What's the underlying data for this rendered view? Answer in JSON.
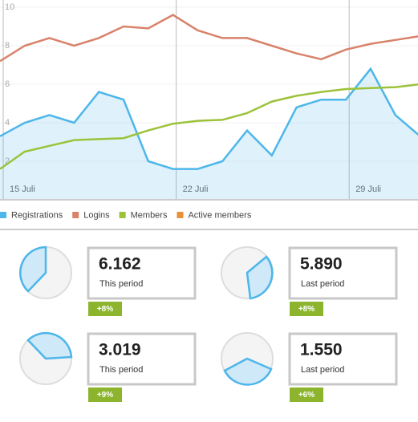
{
  "chart_data": {
    "type": "line",
    "categories": [
      "15 Juli",
      null,
      null,
      null,
      null,
      null,
      null,
      "22 Juli",
      null,
      null,
      null,
      null,
      null,
      null,
      "29 Juli",
      null,
      null,
      null
    ],
    "series": [
      {
        "name": "Registrations",
        "color": "#4db6ea",
        "values": [
          3.3,
          4.0,
          4.4,
          4.0,
          5.6,
          5.2,
          2.0,
          1.6,
          1.6,
          2.0,
          3.6,
          2.3,
          4.8,
          5.2,
          5.2,
          6.8,
          4.4,
          3.3
        ]
      },
      {
        "name": "Logins",
        "color": "#d8826a",
        "values": [
          7.2,
          8.0,
          8.4,
          8.0,
          8.4,
          9.0,
          8.9,
          9.6,
          8.8,
          8.4,
          8.4,
          8.0,
          7.6,
          7.3,
          7.8,
          8.1,
          8.3,
          8.5
        ]
      },
      {
        "name": "Members",
        "color": "#9cc23a",
        "values": [
          1.6,
          2.5,
          2.8,
          3.1,
          3.15,
          3.2,
          3.6,
          3.95,
          4.1,
          4.15,
          4.5,
          5.1,
          5.4,
          5.6,
          5.75,
          5.8,
          5.85,
          6.0
        ]
      },
      {
        "name": "Active members",
        "color": "#e8903a",
        "values": [
          null,
          null,
          null,
          null,
          null,
          null,
          null,
          null,
          null,
          null,
          null,
          null,
          null,
          null,
          null,
          null,
          null,
          null
        ]
      }
    ],
    "ylim": [
      0,
      10
    ],
    "yticks": [
      2,
      4,
      6,
      8,
      10
    ]
  },
  "stats": [
    {
      "value": "6.162",
      "label": "This period",
      "change": "+8%"
    },
    {
      "value": "5.890",
      "label": "Last period",
      "change": "+8%"
    },
    {
      "value": "3.019",
      "label": "This period",
      "change": "+9%"
    },
    {
      "value": "1.550",
      "label": "Last period",
      "change": "+6%"
    }
  ]
}
